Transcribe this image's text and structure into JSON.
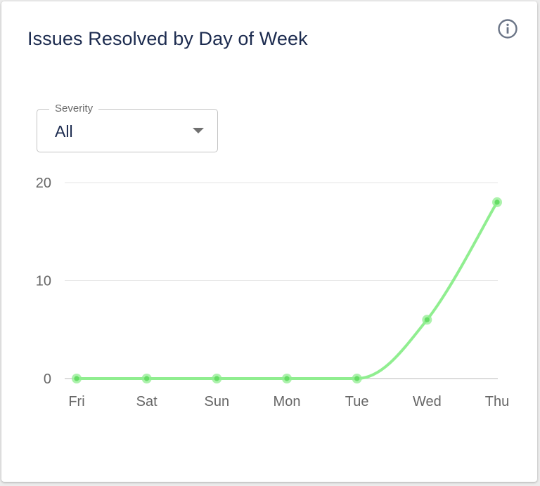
{
  "card": {
    "title": "Issues Resolved by Day of Week",
    "info_icon": "info-circle-icon"
  },
  "filter": {
    "label": "Severity",
    "selected": "All",
    "arrow_icon": "caret-down-icon"
  },
  "chart_data": {
    "type": "line",
    "categories": [
      "Fri",
      "Sat",
      "Sun",
      "Mon",
      "Tue",
      "Wed",
      "Thu"
    ],
    "series": [
      {
        "values": [
          0,
          0,
          0,
          0,
          0,
          6,
          18
        ],
        "color": "#90ee90"
      }
    ],
    "ylim": [
      0,
      20
    ],
    "yticks": [
      0,
      10,
      20
    ],
    "grid": true,
    "legend": "none",
    "title": "",
    "xlabel": "",
    "ylabel": ""
  }
}
